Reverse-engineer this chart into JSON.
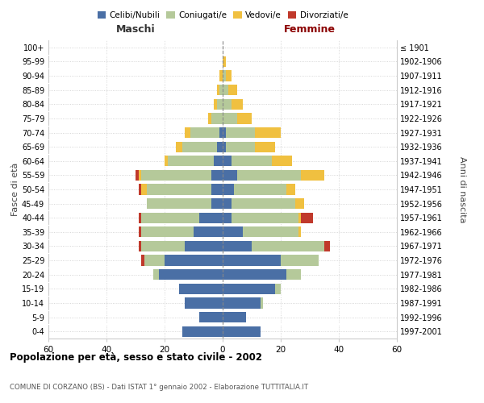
{
  "age_groups": [
    "0-4",
    "5-9",
    "10-14",
    "15-19",
    "20-24",
    "25-29",
    "30-34",
    "35-39",
    "40-44",
    "45-49",
    "50-54",
    "55-59",
    "60-64",
    "65-69",
    "70-74",
    "75-79",
    "80-84",
    "85-89",
    "90-94",
    "95-99",
    "100+"
  ],
  "birth_years": [
    "1997-2001",
    "1992-1996",
    "1987-1991",
    "1982-1986",
    "1977-1981",
    "1972-1976",
    "1967-1971",
    "1962-1966",
    "1957-1961",
    "1952-1956",
    "1947-1951",
    "1942-1946",
    "1937-1941",
    "1932-1936",
    "1927-1931",
    "1922-1926",
    "1917-1921",
    "1912-1916",
    "1907-1911",
    "1902-1906",
    "≤ 1901"
  ],
  "male": {
    "celibi": [
      14,
      8,
      13,
      15,
      22,
      20,
      13,
      10,
      8,
      4,
      4,
      4,
      3,
      2,
      1,
      0,
      0,
      0,
      0,
      0,
      0
    ],
    "coniugati": [
      0,
      0,
      0,
      0,
      2,
      7,
      15,
      18,
      20,
      22,
      22,
      24,
      16,
      12,
      10,
      4,
      2,
      1,
      0,
      0,
      0
    ],
    "vedovi": [
      0,
      0,
      0,
      0,
      0,
      0,
      0,
      0,
      0,
      0,
      2,
      1,
      1,
      2,
      2,
      1,
      1,
      1,
      1,
      0,
      0
    ],
    "divorziati": [
      0,
      0,
      0,
      0,
      0,
      1,
      1,
      1,
      1,
      0,
      1,
      1,
      0,
      0,
      0,
      0,
      0,
      0,
      0,
      0,
      0
    ]
  },
  "female": {
    "nubili": [
      13,
      8,
      13,
      18,
      22,
      20,
      10,
      7,
      3,
      3,
      4,
      5,
      3,
      1,
      1,
      0,
      0,
      0,
      0,
      0,
      0
    ],
    "coniugate": [
      0,
      0,
      1,
      2,
      5,
      13,
      25,
      19,
      23,
      22,
      18,
      22,
      14,
      10,
      10,
      5,
      3,
      2,
      1,
      0,
      0
    ],
    "vedove": [
      0,
      0,
      0,
      0,
      0,
      0,
      0,
      1,
      1,
      3,
      3,
      8,
      7,
      7,
      9,
      5,
      4,
      3,
      2,
      1,
      0
    ],
    "divorziate": [
      0,
      0,
      0,
      0,
      0,
      0,
      2,
      0,
      4,
      0,
      0,
      0,
      0,
      0,
      0,
      0,
      0,
      0,
      0,
      0,
      0
    ]
  },
  "colors": {
    "celibi_nubili": "#4a6fa5",
    "coniugati": "#b5c99a",
    "vedovi": "#f0c040",
    "divorziati": "#c0392b"
  },
  "xlim": 60,
  "title": "Popolazione per età, sesso e stato civile - 2002",
  "subtitle": "COMUNE DI CORZANO (BS) - Dati ISTAT 1° gennaio 2002 - Elaborazione TUTTITALIA.IT",
  "ylabel_left": "Fasce di età",
  "ylabel_right": "Anni di nascita",
  "xlabel_left": "Maschi",
  "xlabel_right": "Femmine"
}
